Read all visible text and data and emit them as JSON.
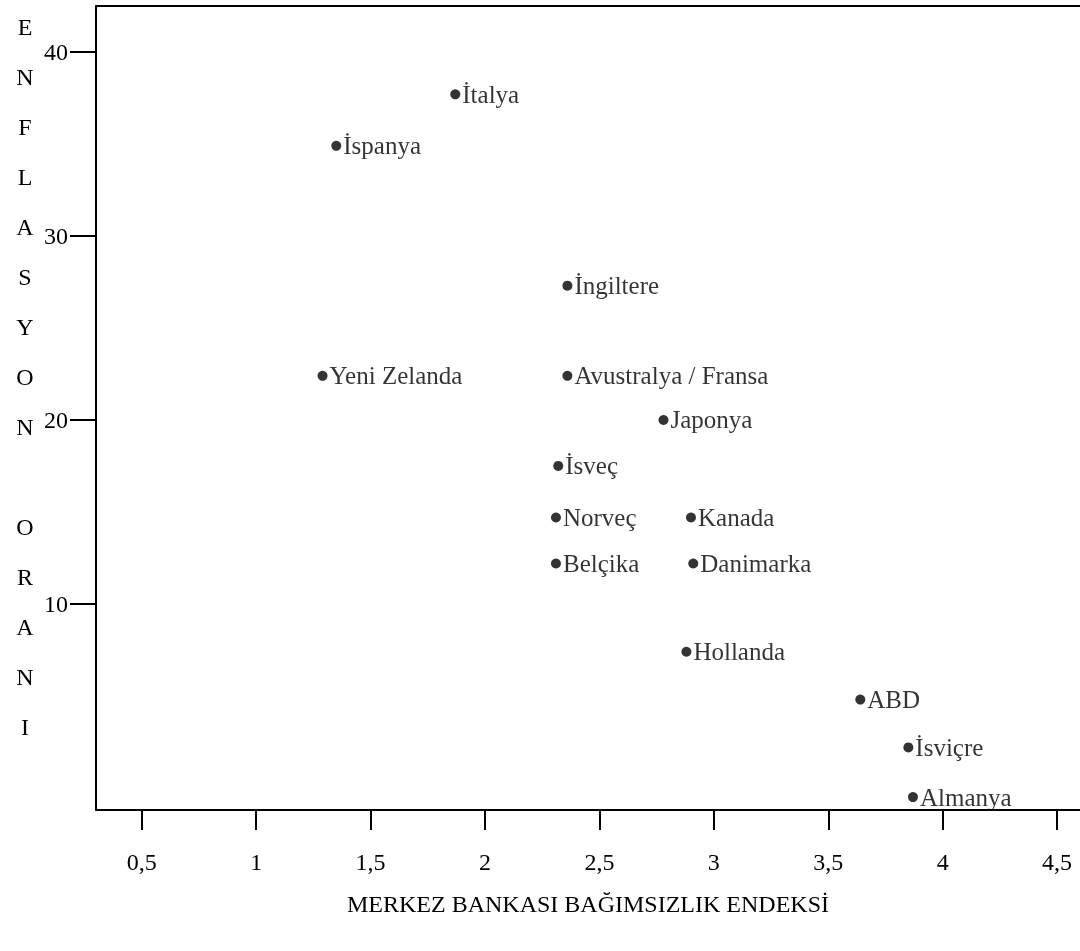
{
  "chart_data": {
    "type": "scatter",
    "xlabel": "MERKEZ BANKASI BAĞIMSIZLIK ENDEKSİ",
    "ylabel": "ENFLASYON ORANI",
    "x": [
      1.87,
      1.35,
      2.36,
      1.29,
      2.36,
      2.78,
      2.32,
      2.31,
      2.9,
      2.31,
      2.91,
      2.88,
      3.64,
      3.85,
      3.87
    ],
    "values": [
      37.7,
      34.9,
      27.3,
      22.4,
      22.4,
      20.0,
      17.5,
      14.7,
      14.7,
      12.2,
      12.2,
      7.4,
      4.8,
      2.2,
      -0.5
    ],
    "value_labels": [
      "İtalya",
      "İspanya",
      "İngiltere",
      "Yeni Zelanda",
      "Avustralya / Fransa",
      "Japonya",
      "İsveç",
      "Norveç",
      "Kanada",
      "Belçika",
      "Danimarka",
      "Hollanda",
      "ABD",
      "İsviçre",
      "Almanya"
    ],
    "color": "#000000",
    "marker": "circle",
    "grid": false,
    "xlim": [
      0.3,
      4.6
    ],
    "xticks": [
      {
        "value": 0.5,
        "label": "0,5"
      },
      1,
      {
        "value": 1.5,
        "label": "1,5"
      },
      2,
      {
        "value": 2.5,
        "label": "2,5"
      },
      3,
      {
        "value": 3.5,
        "label": "3,5"
      },
      4,
      {
        "value": 4.5,
        "label": "4,5"
      }
    ],
    "ylim": [
      -1.2,
      42.5
    ],
    "yticks": [
      10,
      20,
      30,
      40
    ]
  }
}
